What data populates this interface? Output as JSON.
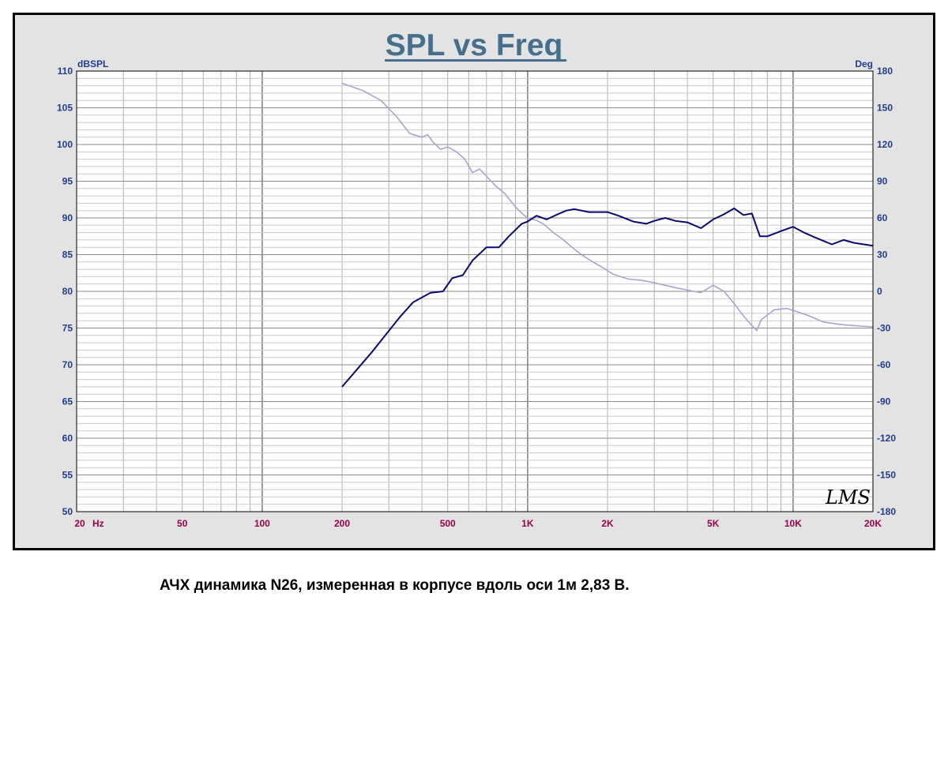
{
  "caption": "АЧХ динамика N26, измеренная в корпусе вдоль оси 1м 2,83 В.",
  "watermark": "LMS",
  "colors": {
    "panel_bg": "#e3e3e3",
    "plot_bg": "#ffffff",
    "title": "#466f8c",
    "spl_line": "#0a0a6e",
    "phase_line": "#a6a6cc",
    "y_ticks": "#1f3d8f",
    "x_ticks": "#99004d"
  },
  "chart_data": {
    "type": "line",
    "title": "SPL vs Freq",
    "xscale": "log",
    "xlim": [
      20,
      20000
    ],
    "ylabel_left": "dBSPL",
    "ylabel_right": "Deg",
    "ylim_left": [
      50,
      110
    ],
    "ylim_right": [
      -180,
      180
    ],
    "grid": true,
    "x_tick_labels": [
      {
        "value": 20,
        "label": "20"
      },
      {
        "value": 50,
        "label": "50"
      },
      {
        "value": 100,
        "label": "100"
      },
      {
        "value": 200,
        "label": "200"
      },
      {
        "value": 500,
        "label": "500"
      },
      {
        "value": 1000,
        "label": "1K"
      },
      {
        "value": 2000,
        "label": "2K"
      },
      {
        "value": 5000,
        "label": "5K"
      },
      {
        "value": 10000,
        "label": "10K"
      },
      {
        "value": 20000,
        "label": "20K"
      }
    ],
    "x_unit_label": "Hz",
    "y_left_ticks": [
      110,
      105,
      100,
      95,
      90,
      85,
      80,
      75,
      70,
      65,
      60,
      55,
      50
    ],
    "y_right_ticks": [
      180,
      150,
      120,
      90,
      60,
      30,
      0,
      -30,
      -60,
      -90,
      -120,
      -150,
      -180
    ],
    "series": [
      {
        "axis": "left",
        "x": [
          200,
          260,
          330,
          370,
          430,
          480,
          520,
          570,
          620,
          700,
          780,
          850,
          950,
          1000,
          1080,
          1180,
          1300,
          1400,
          1500,
          1700,
          2000,
          2200,
          2500,
          2800,
          3000,
          3300,
          3600,
          4000,
          4500,
          5000,
          5500,
          6000,
          6500,
          7000,
          7500,
          8000,
          9000,
          10000,
          11000,
          12000,
          14000,
          15500,
          17000,
          20000
        ],
        "y": [
          67,
          71.8,
          76.5,
          78.5,
          79.8,
          80.0,
          81.8,
          82.2,
          84.2,
          86.0,
          86.0,
          87.5,
          89.2,
          89.5,
          90.3,
          89.8,
          90.5,
          91.0,
          91.2,
          90.8,
          90.8,
          90.3,
          89.5,
          89.2,
          89.6,
          90.0,
          89.6,
          89.4,
          88.6,
          89.8,
          90.5,
          91.3,
          90.4,
          90.6,
          87.5,
          87.5,
          88.2,
          88.8,
          88.0,
          87.4,
          86.4,
          87.0,
          86.6,
          86.2
        ]
      },
      {
        "axis": "right",
        "x": [
          200,
          240,
          280,
          320,
          360,
          400,
          420,
          440,
          470,
          500,
          540,
          580,
          620,
          660,
          700,
          760,
          820,
          900,
          960,
          1000,
          1080,
          1150,
          1250,
          1350,
          1450,
          1550,
          1700,
          1900,
          2100,
          2400,
          2700,
          3000,
          3300,
          3600,
          4000,
          4500,
          5000,
          5500,
          6000,
          6500,
          7000,
          7300,
          7600,
          8500,
          9500,
          10500,
          11500,
          13000,
          15000,
          17000,
          20000
        ],
        "y": [
          170,
          164,
          156,
          143,
          129,
          126,
          128,
          122,
          116,
          118,
          114,
          108,
          97,
          100,
          94,
          86,
          80,
          69,
          63,
          60,
          58,
          55,
          48,
          43,
          37,
          32,
          26,
          20,
          14,
          10,
          9,
          7,
          5,
          3,
          1,
          -1,
          5,
          0,
          -10,
          -20,
          -28,
          -32,
          -23,
          -15,
          -14,
          -17,
          -20,
          -25,
          -27,
          -28,
          -29
        ]
      }
    ]
  }
}
